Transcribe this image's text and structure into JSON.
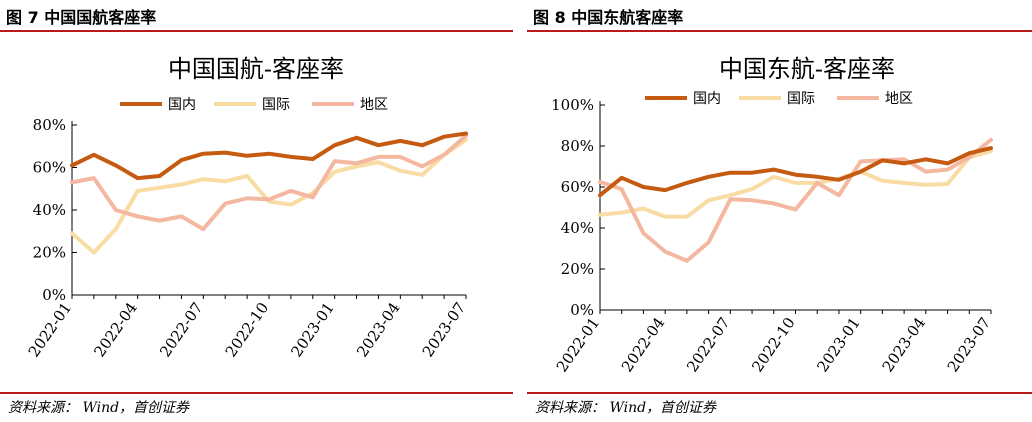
{
  "panels": [
    {
      "figure_label": "图 7  中国国航客座率",
      "source": "资料来源：  Wind，首创证券"
    },
    {
      "figure_label": "图 8  中国东航客座率",
      "source": "资料来源：  Wind，首创证券"
    }
  ],
  "chart_data": [
    {
      "type": "line",
      "title": "中国国航-客座率",
      "xlabel": "",
      "ylabel": "",
      "ylim": [
        0,
        80
      ],
      "yticks": [
        "0%",
        "20%",
        "40%",
        "60%",
        "80%"
      ],
      "xtick_labels": [
        "2022-01",
        "2022-04",
        "2022-07",
        "2022-10",
        "2023-01",
        "2023-04",
        "2023-07"
      ],
      "x": [
        "2022-01",
        "2022-02",
        "2022-03",
        "2022-04",
        "2022-05",
        "2022-06",
        "2022-07",
        "2022-08",
        "2022-09",
        "2022-10",
        "2022-11",
        "2022-12",
        "2023-01",
        "2023-02",
        "2023-03",
        "2023-04",
        "2023-05",
        "2023-06",
        "2023-07"
      ],
      "legend_position": "top-center",
      "grid": false,
      "series": [
        {
          "name": "国内",
          "color": "#c55a11",
          "values": [
            61,
            66,
            61,
            55,
            56,
            63.5,
            66.5,
            67,
            65.5,
            66.5,
            65,
            64,
            70.5,
            74,
            70.5,
            72.5,
            70.5,
            74.5,
            76
          ]
        },
        {
          "name": "国际",
          "color": "#f8dca3",
          "values": [
            29,
            20,
            31,
            49,
            50.5,
            52,
            54.5,
            53.5,
            56,
            44,
            42.5,
            48,
            58,
            60.5,
            62.5,
            58.5,
            56.5,
            66,
            73
          ]
        },
        {
          "name": "地区",
          "color": "#f4b8a0",
          "values": [
            53,
            55,
            40,
            37,
            35,
            37,
            31,
            43,
            45.5,
            45,
            49,
            46,
            63,
            62,
            65,
            65,
            60.5,
            66,
            75
          ]
        }
      ]
    },
    {
      "type": "line",
      "title": "中国东航-客座率",
      "xlabel": "",
      "ylabel": "",
      "ylim": [
        0,
        100
      ],
      "yticks": [
        "0%",
        "20%",
        "40%",
        "60%",
        "80%",
        "100%"
      ],
      "xtick_labels": [
        "2022-01",
        "2022-04",
        "2022-07",
        "2022-10",
        "2023-01",
        "2023-04",
        "2023-07"
      ],
      "x": [
        "2022-01",
        "2022-02",
        "2022-03",
        "2022-04",
        "2022-05",
        "2022-06",
        "2022-07",
        "2022-08",
        "2022-09",
        "2022-10",
        "2022-11",
        "2022-12",
        "2023-01",
        "2023-02",
        "2023-03",
        "2023-04",
        "2023-05",
        "2023-06",
        "2023-07"
      ],
      "legend_position": "top-center",
      "grid": false,
      "series": [
        {
          "name": "国内",
          "color": "#c55a11",
          "values": [
            56,
            64.5,
            60,
            58.5,
            62,
            65,
            67,
            67,
            68.5,
            66,
            65,
            63.5,
            67.5,
            73,
            71.5,
            73.5,
            71.5,
            76.5,
            79
          ]
        },
        {
          "name": "国际",
          "color": "#f8dca3",
          "values": [
            46.5,
            47.5,
            49.5,
            45.5,
            45.5,
            53.5,
            56,
            59,
            65,
            62,
            62,
            64,
            67.5,
            63,
            62,
            61,
            61.5,
            74.5,
            77.5
          ]
        },
        {
          "name": "地区",
          "color": "#f4b8a0",
          "values": [
            62.5,
            59,
            37.5,
            28.5,
            24,
            33,
            54,
            53.5,
            52,
            49,
            62,
            56,
            72.5,
            73,
            73.5,
            67.5,
            68.5,
            74.5,
            83
          ]
        }
      ]
    }
  ]
}
